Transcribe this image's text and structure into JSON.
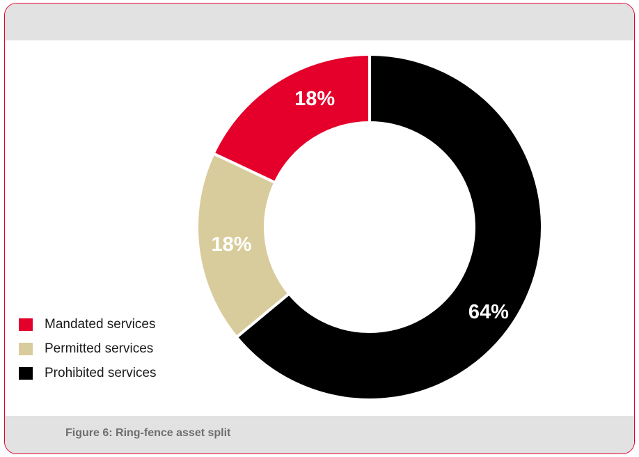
{
  "figure": {
    "caption": "Figure 6: Ring-fence asset split",
    "border_color": "#e4002b",
    "band_color": "#e1e2e1"
  },
  "chart_data": {
    "type": "pie",
    "style": "donut",
    "categories": [
      "Mandated services",
      "Permitted services",
      "Prohibited services"
    ],
    "values": [
      18,
      18,
      64
    ],
    "labels": [
      "18%",
      "18%",
      "64%"
    ],
    "colors": [
      "#e4002b",
      "#d9cc9c",
      "#000000"
    ],
    "start": "top",
    "direction": "counter-clockwise",
    "legend_position": "bottom-left"
  }
}
